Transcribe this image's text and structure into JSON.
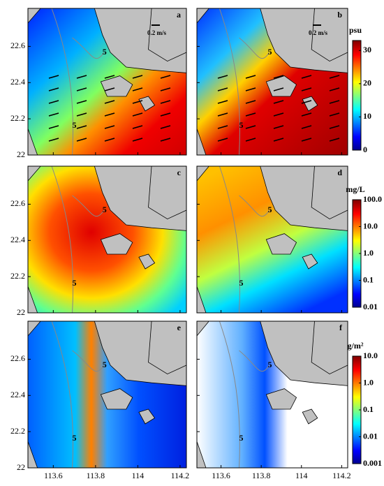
{
  "panels": [
    {
      "label": "a"
    },
    {
      "label": "b"
    },
    {
      "label": "c"
    },
    {
      "label": "d"
    },
    {
      "label": "e"
    },
    {
      "label": "f"
    }
  ],
  "scale_label": "0.2 m/s",
  "contour_label": "5",
  "x_axis": {
    "lim": [
      113.48,
      114.23
    ],
    "ticks": [
      113.6,
      113.8,
      114,
      114.2
    ]
  },
  "y_axis": {
    "lim": [
      22,
      22.81
    ],
    "ticks": [
      22,
      22.2,
      22.4,
      22.6
    ]
  },
  "colorbars": [
    {
      "unit": "psu",
      "scale": "linear",
      "lim": [
        0,
        33
      ],
      "ticks": [
        0,
        10,
        20,
        30
      ]
    },
    {
      "unit": "mg/L",
      "scale": "log",
      "lim": [
        0.01,
        100
      ],
      "ticks": [
        0.01,
        0.1,
        {
          "value": 1,
          "label": "1.0"
        },
        {
          "value": 10,
          "label": "10.0"
        },
        {
          "value": 100,
          "label": "100.0"
        }
      ]
    },
    {
      "unit": "g/m²",
      "scale": "log",
      "lim": [
        0.001,
        10
      ],
      "ticks": [
        0.001,
        0.01,
        0.1,
        {
          "value": 1,
          "label": "1.0"
        },
        {
          "value": 10,
          "label": "10.0"
        }
      ]
    }
  ]
}
